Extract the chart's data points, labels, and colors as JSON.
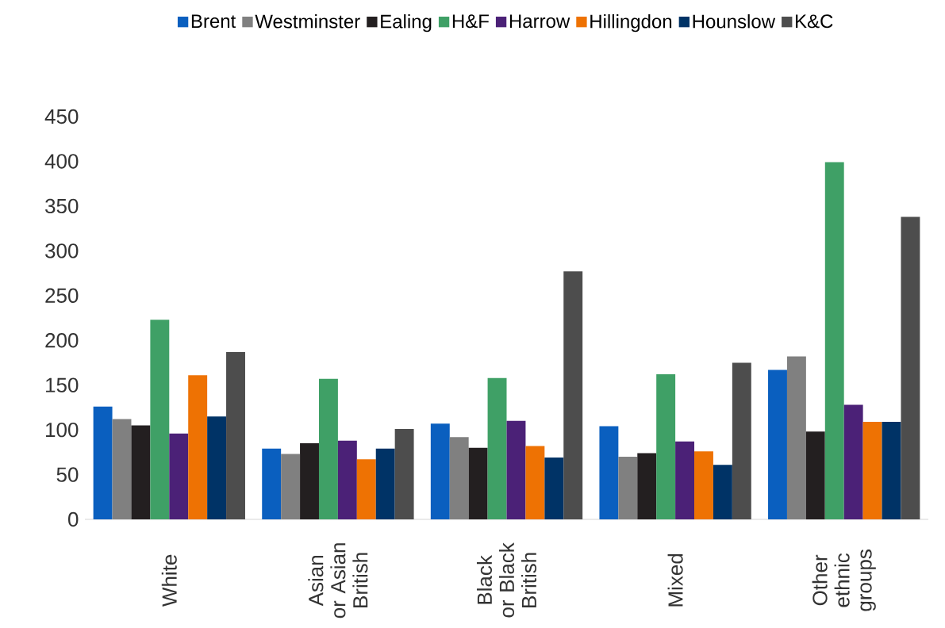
{
  "chart_data": {
    "type": "bar",
    "categories": [
      "White",
      "Asian or Asian British",
      "Black or Black British",
      "Mixed",
      "Other ethnic groups"
    ],
    "series": [
      {
        "name": "Brent",
        "color": "#0a5fbf",
        "values": [
          126,
          79,
          107,
          104,
          167
        ]
      },
      {
        "name": "Westminster",
        "color": "#808080",
        "values": [
          112,
          73,
          92,
          70,
          182
        ]
      },
      {
        "name": "Ealing",
        "color": "#231f20",
        "values": [
          105,
          85,
          80,
          74,
          98
        ]
      },
      {
        "name": "H&F",
        "color": "#3fa066",
        "values": [
          223,
          157,
          158,
          162,
          399
        ]
      },
      {
        "name": "Harrow",
        "color": "#4b2177",
        "values": [
          96,
          88,
          110,
          87,
          128
        ]
      },
      {
        "name": "Hillingdon",
        "color": "#ee7203",
        "values": [
          161,
          67,
          82,
          76,
          109
        ]
      },
      {
        "name": "Hounslow",
        "color": "#003366",
        "values": [
          115,
          79,
          69,
          61,
          109
        ]
      },
      {
        "name": "K&C",
        "color": "#4d4d4d",
        "values": [
          187,
          101,
          277,
          175,
          338
        ]
      }
    ],
    "ylim": [
      0,
      450
    ],
    "yticks": [
      0,
      50,
      100,
      150,
      200,
      250,
      300,
      350,
      400,
      450
    ],
    "legend": "top",
    "grid": false
  }
}
